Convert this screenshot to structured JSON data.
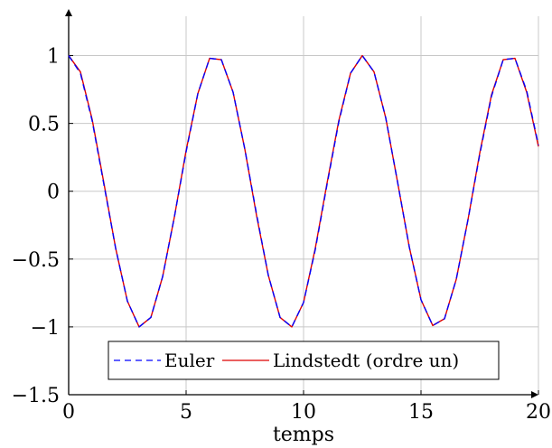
{
  "chart_data": {
    "type": "line",
    "title": "",
    "xlabel": "temps",
    "ylabel": "",
    "xlim": [
      0,
      20
    ],
    "ylim": [
      -1.5,
      1.25
    ],
    "xticks": [
      0,
      5,
      10,
      15,
      20
    ],
    "xtick_labels": [
      "0",
      "5",
      "10",
      "15",
      "20"
    ],
    "yticks": [
      -1.5,
      -1,
      -0.5,
      0,
      0.5,
      1
    ],
    "ytick_labels": [
      "−1.5",
      "−1",
      "−0.5",
      "0",
      "0.5",
      "1"
    ],
    "grid": true,
    "legend_position": "bottom-center",
    "x": [
      0,
      0.5,
      1,
      1.5,
      2,
      2.5,
      3,
      3.5,
      4,
      4.5,
      5,
      5.5,
      6,
      6.5,
      7,
      7.5,
      8,
      8.5,
      9,
      9.5,
      10,
      10.5,
      11,
      11.5,
      12,
      12.5,
      13,
      13.5,
      14,
      14.5,
      15,
      15.5,
      16,
      16.5,
      17,
      17.5,
      18,
      18.5,
      19,
      19.5,
      20
    ],
    "series": [
      {
        "name": "Euler",
        "style": "dashed",
        "color": "#0000ff",
        "values": [
          1.0,
          0.87,
          0.52,
          0.05,
          -0.42,
          -0.81,
          -1.0,
          -0.93,
          -0.63,
          -0.19,
          0.29,
          0.72,
          0.98,
          0.97,
          0.73,
          0.31,
          -0.17,
          -0.62,
          -0.93,
          -1.0,
          -0.82,
          -0.43,
          0.05,
          0.51,
          0.87,
          1.0,
          0.88,
          0.54,
          0.07,
          -0.41,
          -0.8,
          -0.99,
          -0.94,
          -0.65,
          -0.21,
          0.27,
          0.7,
          0.97,
          0.98,
          0.74,
          0.34
        ]
      },
      {
        "name": "Lindstedt (ordre un)",
        "style": "solid",
        "color": "#dd0000",
        "values": [
          1.0,
          0.88,
          0.53,
          0.06,
          -0.42,
          -0.81,
          -1.0,
          -0.93,
          -0.63,
          -0.19,
          0.3,
          0.72,
          0.98,
          0.97,
          0.73,
          0.31,
          -0.18,
          -0.62,
          -0.93,
          -1.0,
          -0.82,
          -0.42,
          0.06,
          0.52,
          0.87,
          1.0,
          0.88,
          0.54,
          0.07,
          -0.41,
          -0.8,
          -0.99,
          -0.94,
          -0.65,
          -0.21,
          0.28,
          0.71,
          0.97,
          0.98,
          0.73,
          0.33
        ]
      }
    ]
  }
}
